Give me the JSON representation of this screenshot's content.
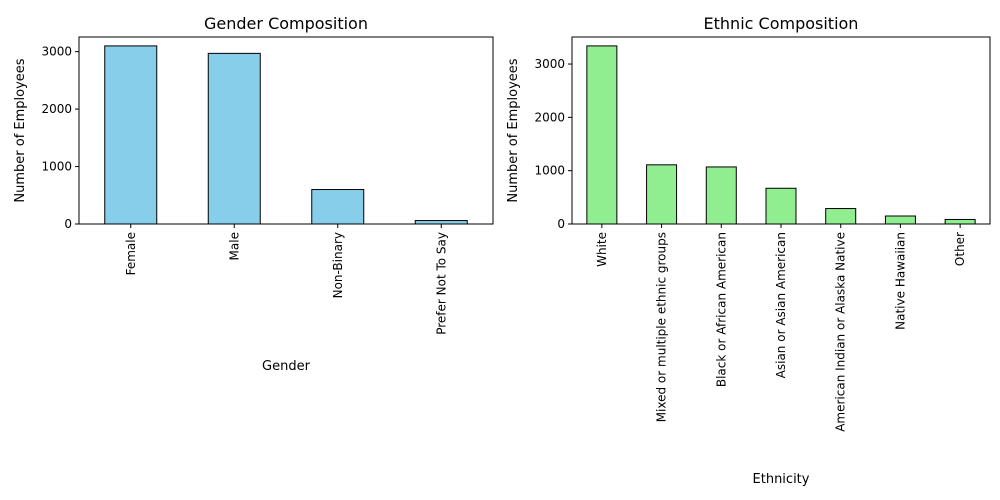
{
  "chart_data": [
    {
      "type": "bar",
      "title": "Gender Composition",
      "xlabel": "Gender",
      "ylabel": "Number of Employees",
      "categories": [
        "Female",
        "Male",
        "Non-Binary",
        "Prefer Not To Say"
      ],
      "values": [
        3100,
        2970,
        600,
        60
      ],
      "ylim": [
        0,
        3255
      ],
      "yticks": [
        0,
        1000,
        2000,
        3000
      ],
      "bar_color": "#87ceeb",
      "edge_color": "#000000",
      "grid": false,
      "tick_label_rotation": 90
    },
    {
      "type": "bar",
      "title": "Ethnic Composition",
      "xlabel": "Ethnicity",
      "ylabel": "Number of Employees",
      "categories": [
        "White",
        "Mixed or multiple ethnic groups",
        "Black or African American",
        "Asian or Asian American",
        "American Indian or Alaska Native",
        "Native Hawaiian",
        "Other"
      ],
      "values": [
        3340,
        1110,
        1070,
        670,
        290,
        150,
        85
      ],
      "ylim": [
        0,
        3507
      ],
      "yticks": [
        0,
        1000,
        2000,
        3000
      ],
      "bar_color": "#90ee90",
      "edge_color": "#000000",
      "grid": false,
      "tick_label_rotation": 90
    }
  ]
}
